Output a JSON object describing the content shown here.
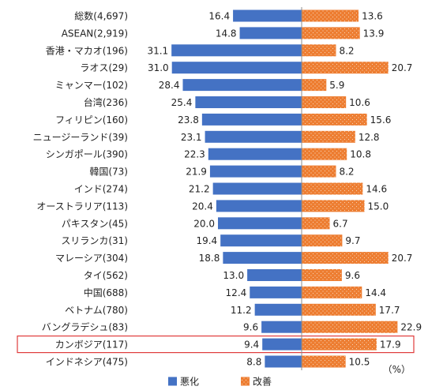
{
  "chart_data": {
    "type": "bar",
    "orientation": "diverging-horizontal",
    "title": "",
    "xlabel": "",
    "ylabel": "",
    "unit": "（%）",
    "xlim": [
      -35,
      25
    ],
    "categories": [
      "総数(4,697)",
      "ASEAN(2,919)",
      "香港・マカオ(196)",
      "ラオス(29)",
      "ミャンマー(102)",
      "台湾(236)",
      "フィリピン(160)",
      "ニュージーランド(39)",
      "シンガポール(390)",
      "韓国(73)",
      "インド(274)",
      "オーストラリア(113)",
      "パキスタン(45)",
      "スリランカ(31)",
      "マレーシア(304)",
      "タイ(562)",
      "中国(688)",
      "ベトナム(780)",
      "バングラデシュ(83)",
      "カンボジア(117)",
      "インドネシア(475)"
    ],
    "series": [
      {
        "name": "悪化",
        "color": "#4472c4",
        "values": [
          16.4,
          14.8,
          31.1,
          31.0,
          28.4,
          25.4,
          23.8,
          23.1,
          22.3,
          21.9,
          21.2,
          20.4,
          20.0,
          19.4,
          18.8,
          13.0,
          12.4,
          11.2,
          9.6,
          9.4,
          8.8
        ]
      },
      {
        "name": "改善",
        "color": "#ed7d31",
        "values": [
          13.6,
          13.9,
          8.2,
          20.7,
          5.9,
          10.6,
          15.6,
          12.8,
          10.8,
          8.2,
          14.6,
          15.0,
          6.7,
          9.7,
          20.7,
          9.6,
          14.4,
          17.7,
          22.9,
          17.9,
          10.5
        ]
      }
    ],
    "value_labels": {
      "deteriorate": [
        "16.4",
        "14.8",
        "31.1",
        "31.0",
        "28.4",
        "25.4",
        "23.8",
        "23.1",
        "22.3",
        "21.9",
        "21.2",
        "20.4",
        "20.0",
        "19.4",
        "18.8",
        "13.0",
        "12.4",
        "11.2",
        "9.6",
        "9.4",
        "8.8"
      ],
      "improve": [
        "13.6",
        "13.9",
        "8.2",
        "20.7",
        "5.9",
        "10.6",
        "15.6",
        "12.8",
        "10.8",
        "8.2",
        "14.6",
        "15.0",
        "6.7",
        "9.7",
        "20.7",
        "9.6",
        "14.4",
        "17.7",
        "22.9",
        "17.9",
        "10.5"
      ]
    },
    "highlight_category": "カンボジア(117)",
    "highlight_color": "#e03c3c",
    "legend_position": "bottom",
    "grid": false
  }
}
